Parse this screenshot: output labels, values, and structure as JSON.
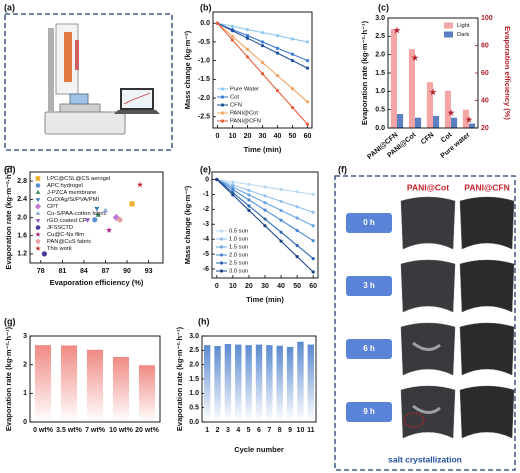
{
  "chart_data": [
    {
      "type": "line",
      "panel": "(b)",
      "x_label": "Time (min)",
      "y_label": "Mass change (kg·m⁻²)",
      "x": [
        0,
        10,
        20,
        30,
        40,
        50,
        60
      ],
      "xlim": [
        -3,
        63
      ],
      "xticks": [
        0,
        10,
        20,
        30,
        40,
        50,
        60
      ],
      "ylim": [
        -2.8,
        0.3
      ],
      "yticks": [
        {
          "value": 0,
          "label": "0.0"
        },
        -0.5,
        {
          "value": -1,
          "label": "-1.0"
        },
        -1.5,
        {
          "value": -2,
          "label": "-2.0"
        },
        -2.5
      ],
      "legend": "lower left",
      "series": [
        {
          "name": "Pure Water",
          "color": "#8fc8ee",
          "values": [
            0,
            -0.08,
            -0.17,
            -0.25,
            -0.33,
            -0.42,
            -0.5
          ]
        },
        {
          "name": "Cot",
          "color": "#3a7bd5",
          "values": [
            0,
            -0.17,
            -0.33,
            -0.5,
            -0.67,
            -0.83,
            -1.0
          ]
        },
        {
          "name": "CFN",
          "color": "#1f4e9a",
          "values": [
            0,
            -0.2,
            -0.4,
            -0.6,
            -0.8,
            -1.0,
            -1.2
          ]
        },
        {
          "name": "PANI@Cot",
          "color": "#f4a460",
          "values": [
            0,
            -0.35,
            -0.7,
            -1.05,
            -1.4,
            -1.75,
            -2.1
          ]
        },
        {
          "name": "PANI@CFN",
          "color": "#e8603c",
          "values": [
            0,
            -0.45,
            -0.9,
            -1.35,
            -1.8,
            -2.25,
            -2.7
          ]
        }
      ]
    },
    {
      "type": "bar",
      "panel": "(c)",
      "y_label": "Evaporation rate (kg·m⁻²·h⁻¹)",
      "y2_label": "Evaporation efficiency (%)",
      "categories": [
        "PANI@CFN",
        "PANI@Cot",
        "CFN",
        "Cot",
        "Pure water"
      ],
      "x_rotate": -40,
      "ylim": [
        0,
        3
      ],
      "yticks": [
        {
          "value": 0,
          "label": "0.0"
        },
        0.5,
        {
          "value": 1,
          "label": "1.0"
        },
        1.5,
        {
          "value": 2,
          "label": "2.0"
        },
        2.5,
        {
          "value": 3,
          "label": "3.0"
        }
      ],
      "y2lim": [
        20,
        100
      ],
      "y2ticks": [
        20,
        40,
        60,
        80,
        100
      ],
      "legend": "upper right",
      "series": [
        {
          "name": "Light",
          "color": "#f4a6a6",
          "values": [
            2.7,
            2.15,
            1.25,
            1.02,
            0.5
          ]
        },
        {
          "name": "Dark",
          "color": "#5b7fc0",
          "values": [
            0.38,
            0.28,
            0.33,
            0.28,
            0.12
          ]
        },
        {
          "color": "#b0202a",
          "axis": "y2",
          "marker": "star",
          "values": [
            91,
            71,
            46,
            31,
            26
          ]
        }
      ]
    },
    {
      "type": "scatter",
      "panel": "(d)",
      "x_label": "Evaporation efficiency (%)",
      "y_label": "Evaporation rate (kg·m⁻²·h⁻¹)",
      "xlim": [
        76.5,
        95
      ],
      "xticks": [
        78,
        81,
        84,
        87,
        90,
        93
      ],
      "ylim": [
        1.0,
        3.0
      ],
      "yticks": [
        1.2,
        1.6,
        {
          "value": 2,
          "label": "2.0"
        },
        2.4,
        2.8
      ],
      "legend": "upper left",
      "series": [
        {
          "name": "LPC@CSL@CS aerogel",
          "color": "#f0b030",
          "marker": "square",
          "x": 90.7,
          "y": 2.3
        },
        {
          "name": "APC hydrogel",
          "color": "#5b8fd6",
          "marker": "circle",
          "x": 85.5,
          "y": 1.95
        },
        {
          "name": "J-PZCA membrane",
          "color": "#2e8b57",
          "marker": "triangle",
          "x": 86,
          "y": 2.05
        },
        {
          "name": "CuO/Ag/Si/PVA/PMI",
          "color": "#3e7fc1",
          "marker": "tri-down",
          "x": 85.8,
          "y": 2.2
        },
        {
          "name": "CPT",
          "color": "#c27ad6",
          "marker": "diamond",
          "x": 88.5,
          "y": 2.0
        },
        {
          "name": "Cu-S/PAA-cotton fabric",
          "color": "#8ea9d9",
          "marker": "triangle",
          "x": 87,
          "y": 2.15
        },
        {
          "name": "rGO coated CF",
          "color": "#8b5cc4",
          "marker": "tri-down",
          "x": 84.5,
          "y": 1.95
        },
        {
          "name": "JFSSCTD",
          "color": "#4b3ca0",
          "marker": "circle",
          "x": 78.5,
          "y": 1.2
        },
        {
          "name": "Cu@C-Ns film",
          "color": "#a02080",
          "marker": "star",
          "x": 87.5,
          "y": 1.72
        },
        {
          "name": "PAN@CuS fabric",
          "color": "#e8a0a0",
          "marker": "pentagon",
          "x": 89,
          "y": 1.95
        },
        {
          "name": "This work",
          "color": "#c0282d",
          "marker": "star",
          "x": 91.8,
          "y": 2.72
        }
      ]
    },
    {
      "type": "line",
      "panel": "(e)",
      "x_label": "Time (min)",
      "y_label": "Mass change (kg·m⁻²)",
      "x": [
        0,
        10,
        20,
        30,
        40,
        50,
        60
      ],
      "xlim": [
        -3,
        63
      ],
      "xticks": [
        0,
        10,
        20,
        30,
        40,
        50,
        60
      ],
      "ylim": [
        -6.6,
        0.5
      ],
      "yticks": [
        0,
        -1,
        -2,
        -3,
        -4,
        -5,
        -6
      ],
      "legend": "lower left",
      "series": [
        {
          "name": "0.5 sun",
          "color": "#b9d8f2",
          "values": [
            0,
            -0.17,
            -0.33,
            -0.5,
            -0.67,
            -0.83,
            -1.0
          ]
        },
        {
          "name": "1.0 sun",
          "color": "#93c0ec",
          "values": [
            0,
            -0.37,
            -0.73,
            -1.1,
            -1.47,
            -1.83,
            -2.2
          ]
        },
        {
          "name": "1.5 sun",
          "color": "#6ca5e2",
          "values": [
            0,
            -0.52,
            -1.03,
            -1.55,
            -2.07,
            -2.58,
            -3.1
          ]
        },
        {
          "name": "2.0 sun",
          "color": "#4a88d2",
          "values": [
            0,
            -0.68,
            -1.37,
            -2.05,
            -2.73,
            -3.42,
            -4.1
          ]
        },
        {
          "name": "2.5 sun",
          "color": "#2e68b4",
          "values": [
            0,
            -0.88,
            -1.77,
            -2.65,
            -3.53,
            -4.42,
            -5.3
          ]
        },
        {
          "name": "3.0 sun",
          "color": "#1b4385",
          "values": [
            0,
            -1.03,
            -2.07,
            -3.1,
            -4.13,
            -5.17,
            -6.2
          ]
        }
      ]
    },
    {
      "type": "bar",
      "panel": "(g)",
      "y_label": "Evaporation rate (kg·m⁻²·h⁻¹)",
      "categories": [
        "0 wt%",
        "3.5 wt%",
        "7 wt%",
        "10 wt%",
        "20 wt%"
      ],
      "values": [
        2.68,
        2.67,
        2.52,
        2.27,
        1.98
      ],
      "color": "#f08a84",
      "gradient": true,
      "ylim": [
        0,
        3
      ],
      "yticks": [
        0,
        1,
        2,
        3
      ]
    },
    {
      "type": "bar",
      "panel": "(h)",
      "x_label": "Cycle number",
      "y_label": "Evaporation rate (kg·m⁻²·h⁻¹)",
      "categories": [
        "1",
        "2",
        "3",
        "4",
        "5",
        "6",
        "7",
        "8",
        "9",
        "10",
        "11"
      ],
      "values": [
        2.68,
        2.65,
        2.72,
        2.7,
        2.68,
        2.7,
        2.68,
        2.66,
        2.62,
        2.8,
        2.7
      ],
      "color": "#5b8ad0",
      "gradient": true,
      "ylim": [
        0,
        3
      ],
      "yticks": [
        {
          "value": 0,
          "label": "0.0"
        },
        0.5,
        {
          "value": 1,
          "label": "1.0"
        },
        1.5,
        {
          "value": 2,
          "label": "2.0"
        },
        2.5,
        {
          "value": 3,
          "label": "3.0"
        }
      ]
    }
  ],
  "figure_panels": [
    {
      "label": "(a)"
    },
    {
      "label": "(f)",
      "columns": [
        "PANI@Cot",
        "PANI@CFN"
      ],
      "rows": [
        "0 h",
        "3 h",
        "6 h",
        "9 h"
      ],
      "caption": "salt crystallization"
    }
  ]
}
